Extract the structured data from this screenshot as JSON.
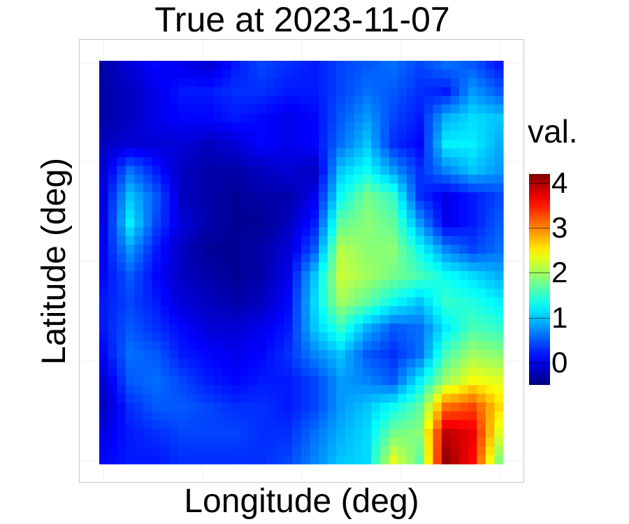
{
  "chart_data": {
    "type": "heatmap",
    "title": "True at 2023-11-07",
    "xlabel": "Longitude (deg)",
    "ylabel": "Latitude (deg)",
    "legend_title": "val.",
    "color_scale": {
      "min": -0.5,
      "max": 4.2,
      "ticks": [
        0,
        1,
        2,
        3,
        4
      ],
      "colors": [
        "#00007f",
        "#0000ff",
        "#007fff",
        "#00ffff",
        "#7fff7f",
        "#ffff00",
        "#ff7f00",
        "#ff0000",
        "#7f0000"
      ]
    },
    "grid": true,
    "rows_top_to_bottom": [
      [
        -0.3,
        -0.1,
        0.1,
        0.0,
        -0.1,
        0.2,
        0.4,
        0.3,
        0.2,
        0.4,
        0.5,
        0.6,
        0.4,
        0.6,
        0.5,
        0.2
      ],
      [
        -0.3,
        -0.2,
        0.0,
        0.2,
        0.2,
        0.3,
        0.3,
        0.2,
        0.2,
        0.4,
        0.6,
        0.5,
        0.3,
        0.2,
        0.8,
        0.5
      ],
      [
        -0.3,
        -0.2,
        0.0,
        0.1,
        0.1,
        0.2,
        0.1,
        0.0,
        0.1,
        0.5,
        0.8,
        0.4,
        0.2,
        0.9,
        1.1,
        1.0
      ],
      [
        -0.2,
        -0.1,
        -0.1,
        -0.1,
        -0.2,
        -0.1,
        0.1,
        0.0,
        0.1,
        0.6,
        1.0,
        0.3,
        0.1,
        1.2,
        1.2,
        0.9
      ],
      [
        -0.1,
        0.6,
        0.2,
        -0.2,
        -0.3,
        -0.3,
        -0.2,
        -0.1,
        -0.2,
        1.0,
        1.3,
        0.8,
        0.3,
        0.7,
        1.0,
        0.8
      ],
      [
        0.0,
        1.0,
        0.5,
        -0.2,
        -0.3,
        -0.4,
        -0.3,
        -0.3,
        0.0,
        1.3,
        1.8,
        1.5,
        0.3,
        0.0,
        0.2,
        0.4
      ],
      [
        0.0,
        1.2,
        0.4,
        -0.1,
        -0.3,
        -0.4,
        -0.4,
        -0.2,
        0.2,
        1.7,
        1.9,
        1.7,
        0.8,
        0.0,
        0.2,
        0.5
      ],
      [
        0.1,
        0.8,
        0.2,
        -0.2,
        -0.4,
        -0.4,
        -0.3,
        -0.1,
        0.5,
        2.1,
        1.9,
        1.9,
        1.3,
        0.7,
        0.4,
        0.6
      ],
      [
        0.1,
        0.5,
        0.1,
        -0.2,
        -0.3,
        -0.4,
        -0.3,
        0.0,
        1.0,
        2.2,
        2.0,
        1.8,
        1.6,
        1.3,
        1.1,
        0.9
      ],
      [
        0.2,
        0.4,
        0.2,
        -0.1,
        -0.2,
        -0.3,
        -0.2,
        0.1,
        1.1,
        2.0,
        1.7,
        1.3,
        1.0,
        1.5,
        1.4,
        1.2
      ],
      [
        0.2,
        0.5,
        0.3,
        0.1,
        -0.1,
        -0.1,
        0.0,
        0.2,
        1.0,
        1.5,
        0.9,
        0.5,
        0.6,
        1.2,
        1.6,
        1.5
      ],
      [
        0.1,
        0.6,
        0.5,
        0.2,
        0.1,
        0.0,
        0.1,
        0.3,
        0.7,
        1.0,
        0.5,
        0.3,
        0.6,
        1.6,
        2.0,
        1.9
      ],
      [
        -0.1,
        0.5,
        0.6,
        0.4,
        0.2,
        0.1,
        0.2,
        0.2,
        0.4,
        0.8,
        0.7,
        0.5,
        1.2,
        2.0,
        2.4,
        2.3
      ],
      [
        -0.2,
        0.3,
        0.5,
        0.5,
        0.4,
        0.3,
        0.3,
        0.2,
        0.4,
        0.8,
        1.0,
        1.3,
        1.7,
        3.1,
        3.3,
        2.6
      ],
      [
        0.0,
        0.2,
        0.3,
        0.4,
        0.4,
        0.4,
        0.3,
        0.3,
        0.6,
        0.9,
        1.1,
        1.8,
        1.9,
        3.9,
        3.7,
        2.3
      ],
      [
        0.1,
        0.2,
        0.2,
        0.3,
        0.3,
        0.3,
        0.3,
        0.4,
        0.7,
        1.0,
        1.1,
        2.3,
        1.7,
        4.1,
        3.6,
        1.9
      ]
    ]
  }
}
